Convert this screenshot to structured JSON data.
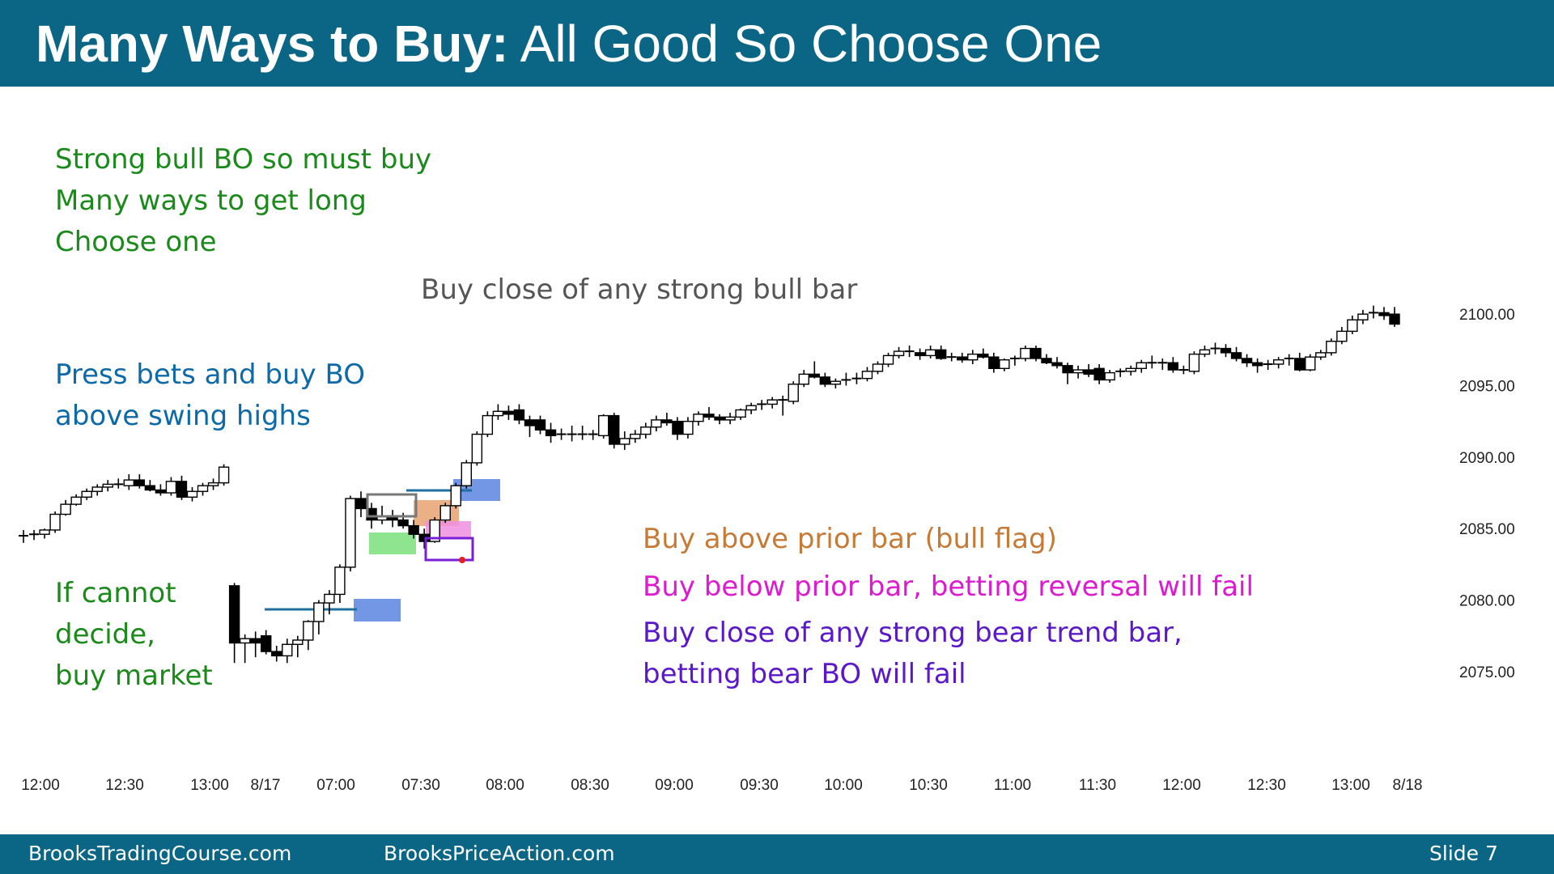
{
  "title": {
    "bold": "Many Ways to Buy:",
    "rest": " All Good So Choose One"
  },
  "annotations": {
    "top_left": [
      "Strong bull BO so must buy",
      "Many ways to get long",
      "Choose one"
    ],
    "press_bets": [
      "Press bets and buy BO",
      "above swing highs"
    ],
    "cannot_decide": [
      "If cannot",
      "decide,",
      "buy market"
    ],
    "buy_close_bull": "Buy close of any strong bull bar",
    "buy_above": "Buy above prior bar (bull flag)",
    "buy_below": "Buy below prior bar, betting reversal will fail",
    "buy_close_bear": [
      "Buy close of any strong bear trend bar,",
      "betting bear BO will fail"
    ]
  },
  "footer": {
    "left": "BrooksTradingCourse.com",
    "center": "BrooksPriceAction.com",
    "slide": "Slide  7"
  },
  "colors": {
    "header_bg": "#0b6585",
    "green_text": "#1a8a1a",
    "blue_text": "#0d6aa8",
    "orange_text": "#c77a36",
    "magenta_text": "#dd1ad0",
    "purple_text": "#5a18c9",
    "blue_box": "#5b84e0",
    "orange_box": "#e8a270",
    "green_box": "#7be07b",
    "pink_box": "#ee8fe0",
    "purple_box": "#7a1fd6",
    "gray_box": "#777777",
    "line": "#1f6fa0"
  },
  "chart_data": {
    "type": "candlestick",
    "y_ticks": [
      "2100.00",
      "2095.00",
      "2090.00",
      "2085.00",
      "2080.00",
      "2075.00"
    ],
    "y_tick_values": [
      2100,
      2095,
      2090,
      2085,
      2080,
      2075
    ],
    "ylim": [
      2072.5,
      2102.5
    ],
    "x_ticks": [
      "12:00",
      "12:30",
      "13:00",
      "8/17",
      "07:00",
      "07:30",
      "08:00",
      "08:30",
      "09:00",
      "09:30",
      "10:00",
      "10:30",
      "11:00",
      "11:30",
      "12:00",
      "12:30",
      "13:00",
      "8/18"
    ],
    "grid": false,
    "candles": [
      {
        "o": 2084.4,
        "h": 2084.9,
        "l": 2084.0,
        "c": 2084.5
      },
      {
        "o": 2084.5,
        "h": 2084.9,
        "l": 2084.2,
        "c": 2084.6
      },
      {
        "o": 2084.6,
        "h": 2085.0,
        "l": 2084.3,
        "c": 2084.9
      },
      {
        "o": 2084.9,
        "h": 2086.2,
        "l": 2084.7,
        "c": 2086.0
      },
      {
        "o": 2086.0,
        "h": 2087.0,
        "l": 2085.9,
        "c": 2086.7
      },
      {
        "o": 2086.7,
        "h": 2087.4,
        "l": 2086.6,
        "c": 2087.2
      },
      {
        "o": 2087.2,
        "h": 2087.8,
        "l": 2087.0,
        "c": 2087.6
      },
      {
        "o": 2087.6,
        "h": 2088.1,
        "l": 2087.3,
        "c": 2087.9
      },
      {
        "o": 2087.9,
        "h": 2088.4,
        "l": 2087.6,
        "c": 2088.1
      },
      {
        "o": 2088.1,
        "h": 2088.5,
        "l": 2087.8,
        "c": 2088.0
      },
      {
        "o": 2088.0,
        "h": 2088.8,
        "l": 2087.7,
        "c": 2088.4
      },
      {
        "o": 2088.4,
        "h": 2088.8,
        "l": 2087.8,
        "c": 2088.0
      },
      {
        "o": 2088.0,
        "h": 2088.4,
        "l": 2087.6,
        "c": 2087.7
      },
      {
        "o": 2087.7,
        "h": 2088.1,
        "l": 2087.3,
        "c": 2087.5
      },
      {
        "o": 2087.5,
        "h": 2088.6,
        "l": 2087.3,
        "c": 2088.3
      },
      {
        "o": 2088.3,
        "h": 2088.7,
        "l": 2087.0,
        "c": 2087.2
      },
      {
        "o": 2087.2,
        "h": 2087.9,
        "l": 2086.9,
        "c": 2087.6
      },
      {
        "o": 2087.6,
        "h": 2088.2,
        "l": 2087.3,
        "c": 2088.0
      },
      {
        "o": 2088.0,
        "h": 2088.5,
        "l": 2087.7,
        "c": 2088.2
      },
      {
        "o": 2088.2,
        "h": 2089.5,
        "l": 2088.0,
        "c": 2089.3
      },
      {
        "o": 2081.0,
        "h": 2081.2,
        "l": 2075.6,
        "c": 2077.0
      },
      {
        "o": 2077.0,
        "h": 2077.6,
        "l": 2075.6,
        "c": 2077.3
      },
      {
        "o": 2077.3,
        "h": 2077.8,
        "l": 2076.0,
        "c": 2077.0
      },
      {
        "o": 2077.5,
        "h": 2077.9,
        "l": 2076.2,
        "c": 2076.4
      },
      {
        "o": 2076.4,
        "h": 2076.8,
        "l": 2075.7,
        "c": 2076.1
      },
      {
        "o": 2076.1,
        "h": 2077.3,
        "l": 2075.6,
        "c": 2076.9
      },
      {
        "o": 2076.9,
        "h": 2077.5,
        "l": 2076.0,
        "c": 2077.2
      },
      {
        "o": 2077.2,
        "h": 2078.6,
        "l": 2076.5,
        "c": 2078.5
      },
      {
        "o": 2078.5,
        "h": 2080.0,
        "l": 2077.6,
        "c": 2079.8
      },
      {
        "o": 2079.8,
        "h": 2080.7,
        "l": 2079.0,
        "c": 2080.4
      },
      {
        "o": 2080.4,
        "h": 2082.5,
        "l": 2079.8,
        "c": 2082.3
      },
      {
        "o": 2082.3,
        "h": 2087.3,
        "l": 2082.0,
        "c": 2087.1
      },
      {
        "o": 2087.1,
        "h": 2087.6,
        "l": 2085.8,
        "c": 2086.4
      },
      {
        "o": 2086.4,
        "h": 2086.8,
        "l": 2085.0,
        "c": 2085.6
      },
      {
        "o": 2085.6,
        "h": 2086.6,
        "l": 2085.3,
        "c": 2085.9
      },
      {
        "o": 2085.9,
        "h": 2086.3,
        "l": 2085.1,
        "c": 2085.6
      },
      {
        "o": 2085.6,
        "h": 2086.1,
        "l": 2085.0,
        "c": 2085.2
      },
      {
        "o": 2085.2,
        "h": 2085.6,
        "l": 2084.3,
        "c": 2084.6
      },
      {
        "o": 2084.6,
        "h": 2085.0,
        "l": 2083.6,
        "c": 2084.1
      },
      {
        "o": 2084.1,
        "h": 2085.8,
        "l": 2084.0,
        "c": 2085.6
      },
      {
        "o": 2085.6,
        "h": 2086.8,
        "l": 2085.4,
        "c": 2086.6
      },
      {
        "o": 2086.6,
        "h": 2088.2,
        "l": 2086.4,
        "c": 2088.0
      },
      {
        "o": 2088.0,
        "h": 2089.8,
        "l": 2087.8,
        "c": 2089.6
      },
      {
        "o": 2089.6,
        "h": 2091.8,
        "l": 2089.4,
        "c": 2091.6
      },
      {
        "o": 2091.6,
        "h": 2093.2,
        "l": 2091.4,
        "c": 2092.9
      },
      {
        "o": 2092.9,
        "h": 2093.7,
        "l": 2092.6,
        "c": 2093.2
      },
      {
        "o": 2093.2,
        "h": 2093.6,
        "l": 2092.6,
        "c": 2093.0
      },
      {
        "o": 2093.3,
        "h": 2093.7,
        "l": 2092.3,
        "c": 2092.6
      },
      {
        "o": 2092.6,
        "h": 2092.9,
        "l": 2091.4,
        "c": 2092.2
      },
      {
        "o": 2092.6,
        "h": 2092.9,
        "l": 2091.6,
        "c": 2091.9
      },
      {
        "o": 2091.9,
        "h": 2092.4,
        "l": 2091.0,
        "c": 2091.5
      },
      {
        "o": 2091.5,
        "h": 2092.0,
        "l": 2091.2,
        "c": 2091.6
      },
      {
        "o": 2091.6,
        "h": 2092.2,
        "l": 2091.1,
        "c": 2091.6
      },
      {
        "o": 2091.6,
        "h": 2092.2,
        "l": 2091.2,
        "c": 2091.5
      },
      {
        "o": 2091.5,
        "h": 2091.9,
        "l": 2091.2,
        "c": 2091.6
      },
      {
        "o": 2091.5,
        "h": 2093.0,
        "l": 2091.3,
        "c": 2092.9
      },
      {
        "o": 2092.9,
        "h": 2093.1,
        "l": 2090.6,
        "c": 2090.9
      },
      {
        "o": 2090.9,
        "h": 2091.8,
        "l": 2090.5,
        "c": 2091.3
      },
      {
        "o": 2091.3,
        "h": 2091.9,
        "l": 2091.0,
        "c": 2091.6
      },
      {
        "o": 2091.6,
        "h": 2092.4,
        "l": 2091.3,
        "c": 2092.1
      },
      {
        "o": 2092.1,
        "h": 2092.9,
        "l": 2091.8,
        "c": 2092.6
      },
      {
        "o": 2092.6,
        "h": 2093.1,
        "l": 2092.2,
        "c": 2092.4
      },
      {
        "o": 2092.5,
        "h": 2092.8,
        "l": 2091.2,
        "c": 2091.6
      },
      {
        "o": 2091.6,
        "h": 2092.8,
        "l": 2091.3,
        "c": 2092.5
      },
      {
        "o": 2092.5,
        "h": 2093.2,
        "l": 2092.2,
        "c": 2093.0
      },
      {
        "o": 2093.0,
        "h": 2093.5,
        "l": 2092.6,
        "c": 2092.8
      },
      {
        "o": 2092.8,
        "h": 2093.0,
        "l": 2092.3,
        "c": 2092.6
      },
      {
        "o": 2092.6,
        "h": 2093.1,
        "l": 2092.3,
        "c": 2092.8
      },
      {
        "o": 2092.8,
        "h": 2093.4,
        "l": 2092.6,
        "c": 2093.3
      },
      {
        "o": 2093.3,
        "h": 2093.8,
        "l": 2093.0,
        "c": 2093.6
      },
      {
        "o": 2093.6,
        "h": 2094.0,
        "l": 2093.3,
        "c": 2093.7
      },
      {
        "o": 2093.7,
        "h": 2094.2,
        "l": 2093.4,
        "c": 2094.0
      },
      {
        "o": 2094.0,
        "h": 2094.3,
        "l": 2092.9,
        "c": 2093.9
      },
      {
        "o": 2093.9,
        "h": 2095.3,
        "l": 2093.7,
        "c": 2095.1
      },
      {
        "o": 2095.1,
        "h": 2096.1,
        "l": 2094.9,
        "c": 2095.8
      },
      {
        "o": 2095.8,
        "h": 2096.7,
        "l": 2095.5,
        "c": 2095.6
      },
      {
        "o": 2095.6,
        "h": 2095.9,
        "l": 2094.9,
        "c": 2095.1
      },
      {
        "o": 2095.1,
        "h": 2095.5,
        "l": 2094.8,
        "c": 2095.3
      },
      {
        "o": 2095.3,
        "h": 2095.9,
        "l": 2095.0,
        "c": 2095.4
      },
      {
        "o": 2095.4,
        "h": 2095.9,
        "l": 2095.1,
        "c": 2095.5
      },
      {
        "o": 2095.5,
        "h": 2096.3,
        "l": 2095.3,
        "c": 2096.0
      },
      {
        "o": 2096.0,
        "h": 2096.7,
        "l": 2095.8,
        "c": 2096.5
      },
      {
        "o": 2096.5,
        "h": 2097.3,
        "l": 2096.3,
        "c": 2097.1
      },
      {
        "o": 2097.1,
        "h": 2097.7,
        "l": 2096.9,
        "c": 2097.4
      },
      {
        "o": 2097.4,
        "h": 2097.8,
        "l": 2097.0,
        "c": 2097.3
      },
      {
        "o": 2097.3,
        "h": 2097.6,
        "l": 2096.8,
        "c": 2097.1
      },
      {
        "o": 2097.1,
        "h": 2097.8,
        "l": 2096.9,
        "c": 2097.5
      },
      {
        "o": 2097.5,
        "h": 2097.8,
        "l": 2096.8,
        "c": 2096.9
      },
      {
        "o": 2096.9,
        "h": 2097.3,
        "l": 2096.7,
        "c": 2097.0
      },
      {
        "o": 2097.0,
        "h": 2097.3,
        "l": 2096.6,
        "c": 2096.8
      },
      {
        "o": 2096.8,
        "h": 2097.5,
        "l": 2096.5,
        "c": 2097.2
      },
      {
        "o": 2097.2,
        "h": 2097.6,
        "l": 2096.9,
        "c": 2097.0
      },
      {
        "o": 2097.0,
        "h": 2097.3,
        "l": 2095.9,
        "c": 2096.2
      },
      {
        "o": 2096.2,
        "h": 2096.9,
        "l": 2096.0,
        "c": 2096.8
      },
      {
        "o": 2096.8,
        "h": 2097.1,
        "l": 2096.4,
        "c": 2096.9
      },
      {
        "o": 2096.9,
        "h": 2097.8,
        "l": 2096.7,
        "c": 2097.6
      },
      {
        "o": 2097.6,
        "h": 2097.8,
        "l": 2096.7,
        "c": 2096.9
      },
      {
        "o": 2096.9,
        "h": 2097.2,
        "l": 2096.5,
        "c": 2096.6
      },
      {
        "o": 2096.6,
        "h": 2097.0,
        "l": 2096.2,
        "c": 2096.4
      },
      {
        "o": 2096.4,
        "h": 2096.6,
        "l": 2095.1,
        "c": 2095.9
      },
      {
        "o": 2095.9,
        "h": 2096.4,
        "l": 2095.5,
        "c": 2096.1
      },
      {
        "o": 2096.1,
        "h": 2096.5,
        "l": 2095.6,
        "c": 2095.8
      },
      {
        "o": 2096.2,
        "h": 2096.5,
        "l": 2095.1,
        "c": 2095.4
      },
      {
        "o": 2095.4,
        "h": 2096.1,
        "l": 2095.2,
        "c": 2095.9
      },
      {
        "o": 2095.9,
        "h": 2096.2,
        "l": 2095.6,
        "c": 2096.0
      },
      {
        "o": 2096.0,
        "h": 2096.4,
        "l": 2095.7,
        "c": 2096.2
      },
      {
        "o": 2096.2,
        "h": 2096.8,
        "l": 2095.9,
        "c": 2096.6
      },
      {
        "o": 2096.6,
        "h": 2097.1,
        "l": 2096.2,
        "c": 2096.5
      },
      {
        "o": 2096.5,
        "h": 2096.9,
        "l": 2096.1,
        "c": 2096.6
      },
      {
        "o": 2096.6,
        "h": 2097.0,
        "l": 2095.9,
        "c": 2096.1
      },
      {
        "o": 2096.1,
        "h": 2096.4,
        "l": 2095.8,
        "c": 2096.0
      },
      {
        "o": 2096.0,
        "h": 2097.4,
        "l": 2095.8,
        "c": 2097.2
      },
      {
        "o": 2097.2,
        "h": 2097.8,
        "l": 2097.0,
        "c": 2097.5
      },
      {
        "o": 2097.5,
        "h": 2098.0,
        "l": 2097.2,
        "c": 2097.6
      },
      {
        "o": 2097.6,
        "h": 2097.9,
        "l": 2097.0,
        "c": 2097.3
      },
      {
        "o": 2097.3,
        "h": 2097.7,
        "l": 2096.7,
        "c": 2096.9
      },
      {
        "o": 2096.9,
        "h": 2097.2,
        "l": 2096.3,
        "c": 2096.6
      },
      {
        "o": 2096.6,
        "h": 2096.9,
        "l": 2095.9,
        "c": 2096.4
      },
      {
        "o": 2096.4,
        "h": 2096.8,
        "l": 2096.1,
        "c": 2096.5
      },
      {
        "o": 2096.5,
        "h": 2097.0,
        "l": 2096.2,
        "c": 2096.8
      },
      {
        "o": 2096.8,
        "h": 2097.2,
        "l": 2096.4,
        "c": 2096.9
      },
      {
        "o": 2096.9,
        "h": 2097.3,
        "l": 2096.0,
        "c": 2096.1
      },
      {
        "o": 2096.1,
        "h": 2097.2,
        "l": 2096.0,
        "c": 2097.0
      },
      {
        "o": 2097.0,
        "h": 2097.5,
        "l": 2096.8,
        "c": 2097.3
      },
      {
        "o": 2097.3,
        "h": 2098.3,
        "l": 2097.1,
        "c": 2098.1
      },
      {
        "o": 2098.1,
        "h": 2099.1,
        "l": 2097.9,
        "c": 2098.8
      },
      {
        "o": 2098.8,
        "h": 2099.9,
        "l": 2098.6,
        "c": 2099.6
      },
      {
        "o": 2099.6,
        "h": 2100.3,
        "l": 2099.3,
        "c": 2100.0
      },
      {
        "o": 2100.0,
        "h": 2100.6,
        "l": 2099.7,
        "c": 2100.1
      },
      {
        "o": 2100.1,
        "h": 2100.5,
        "l": 2099.6,
        "c": 2099.9
      },
      {
        "o": 2100.0,
        "h": 2100.5,
        "l": 2099.1,
        "c": 2099.3
      }
    ]
  }
}
